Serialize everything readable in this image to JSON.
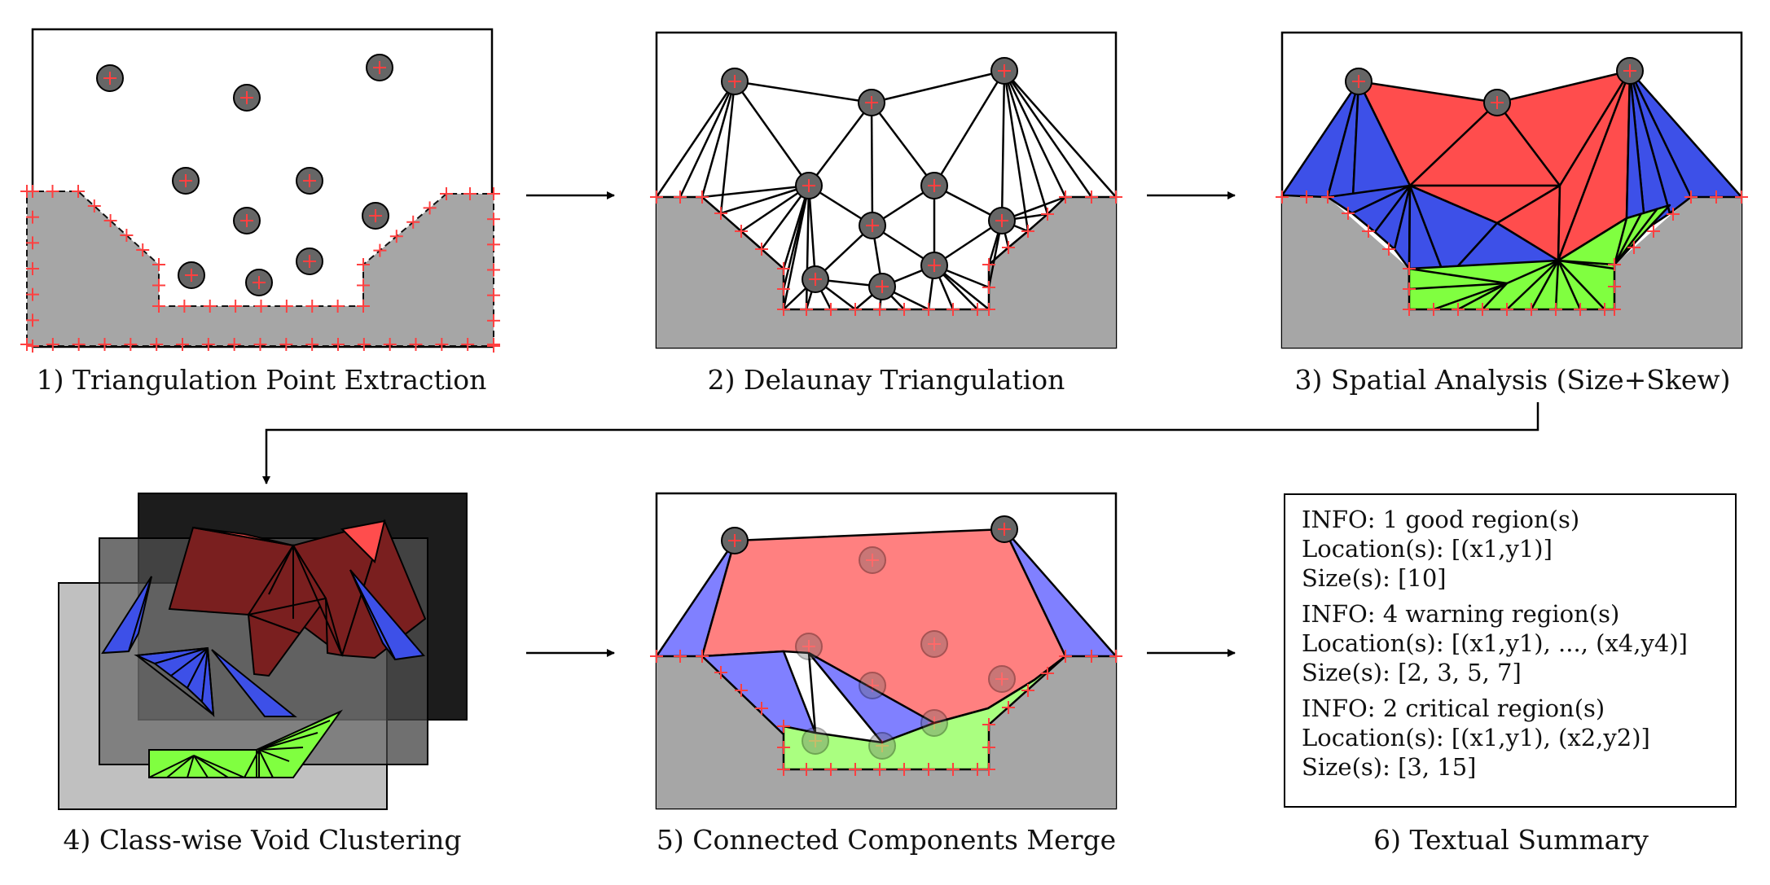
{
  "captions": {
    "step1": "1) Triangulation Point Extraction",
    "step2": "2) Delaunay Triangulation",
    "step3": "3) Spatial Analysis (Size+Skew)",
    "step4": "4) Class-wise Void Clustering",
    "step5": "5) Connected Components Merge",
    "step6": "6) Textual Summary"
  },
  "summary": [
    {
      "info": "INFO: 1 good region(s)",
      "location": "Location(s): [(x1,y1)]",
      "size": "Size(s): [10]"
    },
    {
      "info": "INFO: 4 warning region(s)",
      "location": "Location(s): [(x1,y1), ..., (x4,y4)]",
      "size": "Size(s): [2, 3, 5, 7]"
    },
    {
      "info": "INFO: 2 critical region(s)",
      "location": "Location(s): [(x1,y1), (x2,y2)]",
      "size": "Size(s): [3, 15]"
    }
  ],
  "colors": {
    "good": "#80ff40",
    "warning": "#3d50e8",
    "critical": "#ff4d4d",
    "substrate": "#a6a6a6",
    "marker": "#ff4040"
  }
}
